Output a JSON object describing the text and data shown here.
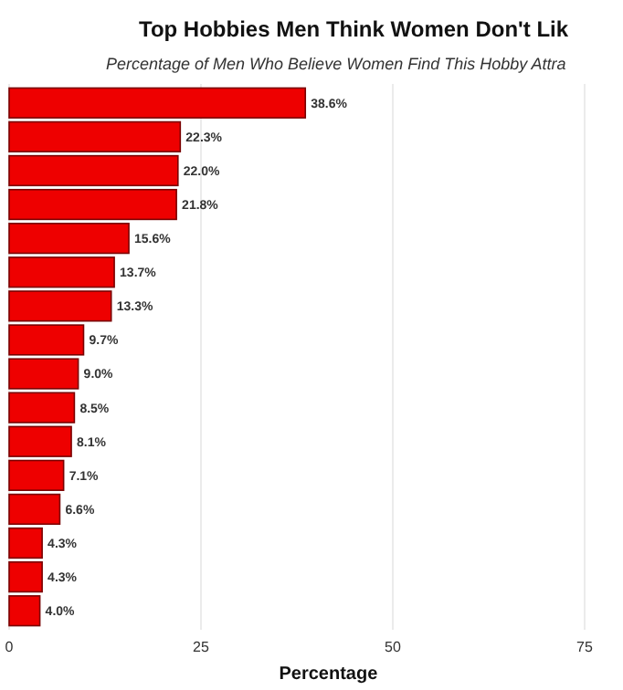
{
  "chart_data": {
    "type": "bar",
    "orientation": "horizontal",
    "title": "Top Hobbies Men Think Women Don't Lik",
    "subtitle": "Percentage of Men Who Believe Women Find This Hobby Attra",
    "xlabel": "Percentage",
    "categories": [
      null,
      null,
      null,
      null,
      null,
      null,
      null,
      null,
      null,
      null,
      null,
      null,
      null,
      null,
      null,
      null
    ],
    "values": [
      38.6,
      22.3,
      22.0,
      21.8,
      15.6,
      13.7,
      13.3,
      9.7,
      9.0,
      8.5,
      8.1,
      7.1,
      6.6,
      4.3,
      4.3,
      4.0
    ],
    "value_labels": [
      "38.6%",
      "22.3%",
      "22.0%",
      "21.8%",
      "15.6%",
      "13.7%",
      "13.3%",
      "9.7%",
      "9.0%",
      "8.5%",
      "8.1%",
      "7.1%",
      "6.6%",
      "4.3%",
      "4.3%",
      "4.0%"
    ],
    "color": "#ee0000",
    "xlim": [
      0,
      80
    ],
    "xticks": [
      0,
      25,
      50,
      75
    ],
    "grid": "x",
    "tick_labels": "x"
  }
}
